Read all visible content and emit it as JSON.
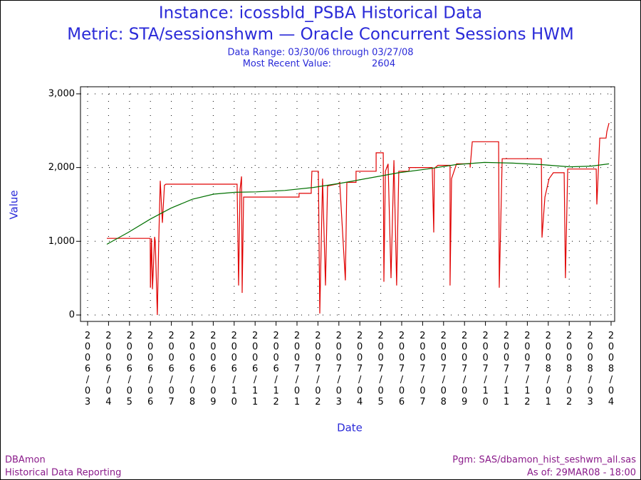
{
  "chart_data": {
    "type": "line",
    "title": "Instance: icossbld_PSBA Historical Data",
    "subtitle": "Metric: STA/sessionshwm — Oracle Concurrent Sessions HWM",
    "data_range": "Data Range: 03/30/06 through 03/27/08",
    "most_recent_label": "Most Recent Value:",
    "most_recent_value": 2604,
    "y_label": "Value",
    "x_label": "Date",
    "footer_left": [
      "DBAmon",
      "Historical Data Reporting"
    ],
    "footer_right": [
      "Pgm: SAS/dbamon_hist_seshwm_all.sas",
      "As of: 29MAR08 - 18:00"
    ],
    "xlim": [
      -0.34,
      25.17
    ],
    "xticks": [
      {
        "value": 0,
        "label": "2006/03"
      },
      {
        "value": 1,
        "label": "2006/04"
      },
      {
        "value": 2,
        "label": "2006/05"
      },
      {
        "value": 3,
        "label": "2006/06"
      },
      {
        "value": 4,
        "label": "2006/07"
      },
      {
        "value": 5,
        "label": "2006/08"
      },
      {
        "value": 6,
        "label": "2006/09"
      },
      {
        "value": 7,
        "label": "2006/10"
      },
      {
        "value": 8,
        "label": "2006/11"
      },
      {
        "value": 9,
        "label": "2006/12"
      },
      {
        "value": 10,
        "label": "2007/01"
      },
      {
        "value": 11,
        "label": "2007/02"
      },
      {
        "value": 12,
        "label": "2007/03"
      },
      {
        "value": 13,
        "label": "2007/04"
      },
      {
        "value": 14,
        "label": "2007/05"
      },
      {
        "value": 15,
        "label": "2007/06"
      },
      {
        "value": 16,
        "label": "2007/07"
      },
      {
        "value": 17,
        "label": "2007/08"
      },
      {
        "value": 18,
        "label": "2007/09"
      },
      {
        "value": 19,
        "label": "2007/10"
      },
      {
        "value": 20,
        "label": "2007/11"
      },
      {
        "value": 21,
        "label": "2007/12"
      },
      {
        "value": 22,
        "label": "2008/01"
      },
      {
        "value": 23,
        "label": "2008/02"
      },
      {
        "value": 24,
        "label": "2008/03"
      },
      {
        "value": 25,
        "label": "2008/04"
      }
    ],
    "ylim": [
      -87,
      3096
    ],
    "yticks": [
      0,
      {
        "value": 1000,
        "label": "1,000"
      },
      {
        "value": 2000,
        "label": "2,000"
      },
      {
        "value": 3000,
        "label": "3,000"
      }
    ],
    "grid": true,
    "series": [
      {
        "color": "#e00000",
        "x": [
          0.92,
          2.99,
          3.0,
          3.05,
          3.1,
          3.2,
          3.23,
          3.33,
          3.4,
          3.47,
          3.57,
          3.67,
          3.74,
          7.14,
          7.21,
          7.28,
          7.35,
          7.38,
          7.45,
          10.1,
          10.1,
          10.68,
          10.68,
          10.71,
          11.02,
          11.09,
          11.22,
          11.36,
          11.46,
          11.97,
          12.04,
          12.31,
          12.38,
          12.82,
          12.82,
          13.78,
          13.78,
          14.12,
          14.15,
          14.22,
          14.35,
          14.49,
          14.63,
          14.76,
          14.86,
          15.34,
          15.37,
          16.46,
          16.53,
          16.56,
          16.73,
          17.31,
          17.31,
          17.38,
          17.62,
          18.27,
          18.27,
          18.37,
          19.63,
          19.66,
          19.8,
          21.67,
          21.7,
          21.84,
          22.04,
          22.24,
          22.76,
          22.82,
          22.93,
          24.29,
          24.32,
          24.46,
          24.76,
          24.8,
          24.9
        ],
        "values": [
          1040,
          1040,
          370,
          1040,
          350,
          1060,
          1000,
          0,
          1050,
          1820,
          1250,
          1760,
          1775,
          1775,
          400,
          1700,
          1880,
          300,
          1600,
          1600,
          1650,
          1650,
          1700,
          1950,
          1950,
          20,
          1850,
          400,
          1750,
          1780,
          1800,
          470,
          1800,
          1800,
          1950,
          1950,
          2200,
          2200,
          450,
          1950,
          2050,
          500,
          2100,
          400,
          1950,
          1950,
          2000,
          2000,
          1120,
          1990,
          2030,
          2030,
          400,
          1850,
          2050,
          2050,
          2000,
          2350,
          2350,
          370,
          2120,
          2120,
          1050,
          1600,
          1850,
          1930,
          1930,
          500,
          1980,
          1980,
          1500,
          2400,
          2400,
          2490,
          2604
        ]
      },
      {
        "color": "#007000",
        "x": [
          0.92,
          1.94,
          2.99,
          3.98,
          5.0,
          6.02,
          7.04,
          8.06,
          9.42,
          10.78,
          12.14,
          13.5,
          14.86,
          16.22,
          17.59,
          18.95,
          20.31,
          21.67,
          23.03,
          24.05,
          24.9
        ],
        "values": [
          960,
          1120,
          1300,
          1450,
          1570,
          1640,
          1665,
          1670,
          1690,
          1730,
          1790,
          1860,
          1930,
          1980,
          2040,
          2070,
          2060,
          2040,
          2010,
          2020,
          2050
        ]
      }
    ]
  }
}
